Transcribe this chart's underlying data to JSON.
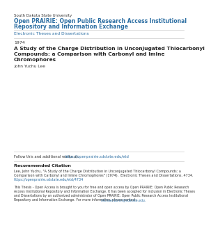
{
  "background_color": "#ffffff",
  "institution": "South Dakota State University",
  "repo_title_line1": "Open PRAIRIE: Open Public Research Access Institutional",
  "repo_title_line2": "Repository and Information Exchange",
  "section_label": "Electronic Theses and Dissertations",
  "year": "1974",
  "title_line1": "A Study of the Charge Distribution in Unconjugated Thiocarbonyl",
  "title_line2": "Compounds: a Comparison with Carbonyl and Imine",
  "title_line3": "Chromophores",
  "author": "John Yuchu Lee",
  "follow_text": "Follow this and additional works at: ",
  "follow_link": "https://openprairie.sdstate.edu/etd",
  "rec_citation_bold": "Recommended Citation",
  "citation_line1": "Lee, John Yuchu, \"A Study of the Charge Distribution in Unconjugated Thiocarbonyl Compounds: a",
  "citation_line2": "Comparison with Carbonyl and Imine Chromophores\" (1974).  Electronic Theses and Dissertations. 4734.",
  "citation_link": "https://openprairie.sdstate.edu/etd/4734",
  "footer_line1": "This Thesis - Open Access is brought to you for free and open access by Open PRAIRIE: Open Public Research",
  "footer_line2": "Access Institutional Repository and Information Exchange. It has been accepted for inclusion in Electronic Theses",
  "footer_line3": "and Dissertations by an authorized administrator of Open PRAIRIE: Open Public Research Access Institutional",
  "footer_line4": "Repository and Information Exchange. For more information, please contact: ",
  "footer_link": "michael.bonin@sdstate.edu.",
  "color_blue": "#2d6fa3",
  "color_link": "#2d6fa3",
  "color_dark": "#333333",
  "color_black": "#222222",
  "color_line": "#cccccc"
}
